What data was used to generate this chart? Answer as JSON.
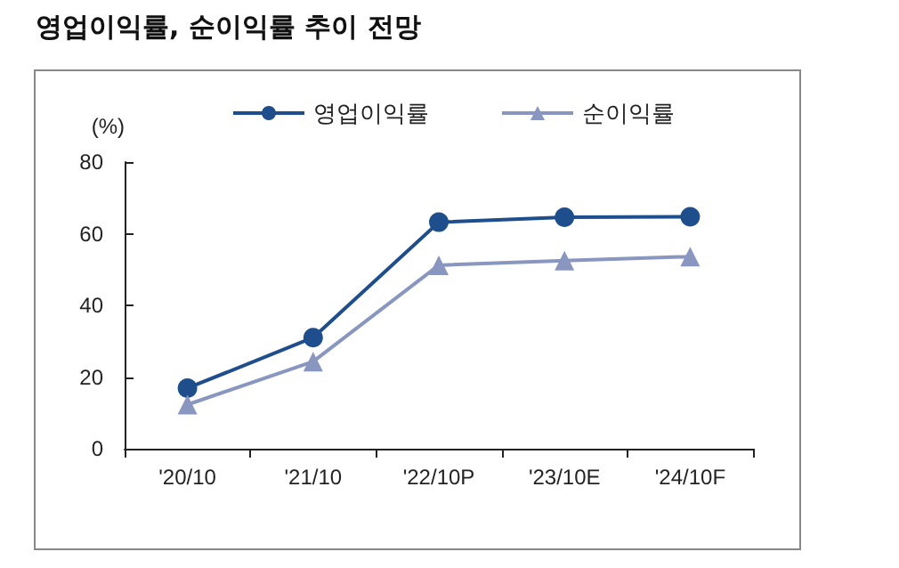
{
  "chart_data": {
    "type": "line",
    "title": "영업이익률, 순이익률 추이 전망",
    "ylabel": "(%)",
    "categories": [
      "'20/10",
      "'21/10",
      "'22/10P",
      "'23/10E",
      "'24/10F"
    ],
    "series": [
      {
        "name": "영업이익률",
        "color": "#1f4e8c",
        "marker": "circle",
        "values": [
          16.9,
          31,
          63.2,
          64.6,
          64.7
        ]
      },
      {
        "name": "순이익률",
        "color": "#8896c0",
        "marker": "triangle",
        "values": [
          12.3,
          24.3,
          51.2,
          52.5,
          53.6
        ]
      }
    ],
    "ylim": [
      0,
      80
    ],
    "yticks": [
      0,
      20,
      40,
      60,
      80
    ],
    "grid": false,
    "legend": "top"
  }
}
